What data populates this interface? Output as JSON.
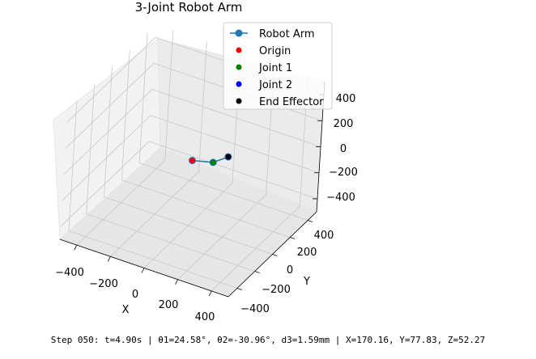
{
  "chart_data": {
    "type": "line",
    "title": "3-Joint Robot Arm",
    "xlabel": "X",
    "ylabel": "Y",
    "zlabel": "",
    "xlim": [
      -500,
      500
    ],
    "ylim": [
      -500,
      500
    ],
    "zlim": [
      -500,
      500
    ],
    "x_ticks": [
      "−400",
      "−200",
      "0",
      "200",
      "400"
    ],
    "y_ticks": [
      "400",
      "200",
      "0",
      "−200",
      "−400"
    ],
    "z_ticks": [
      "400",
      "200",
      "0",
      "−200",
      "−400"
    ],
    "grid": true,
    "legend_position": "top-right",
    "series": [
      {
        "name": "Robot Arm",
        "color": "#1f77b4",
        "points": [
          {
            "x": 0,
            "y": 0,
            "z": 0
          },
          {
            "x": 100,
            "y": 45,
            "z": 0
          },
          {
            "x": 170.16,
            "y": 77.83,
            "z": 52.27
          }
        ]
      }
    ],
    "markers": [
      {
        "name": "Origin",
        "color": "#ff0000",
        "point": {
          "x": 0,
          "y": 0,
          "z": 0
        }
      },
      {
        "name": "Joint 1",
        "color": "#008000",
        "point": {
          "x": 100,
          "y": 45,
          "z": 0
        }
      },
      {
        "name": "Joint 2",
        "color": "#0000ff",
        "point": {
          "x": 170.16,
          "y": 77.83,
          "z": 52.27
        }
      },
      {
        "name": "End Effector",
        "color": "#000000",
        "point": {
          "x": 170.16,
          "y": 77.83,
          "z": 52.27
        }
      }
    ]
  },
  "status_text": "Step 050: t=4.90s | θ1=24.58°, θ2=-30.96°, d3=1.59mm | X=170.16, Y=77.83, Z=52.27"
}
